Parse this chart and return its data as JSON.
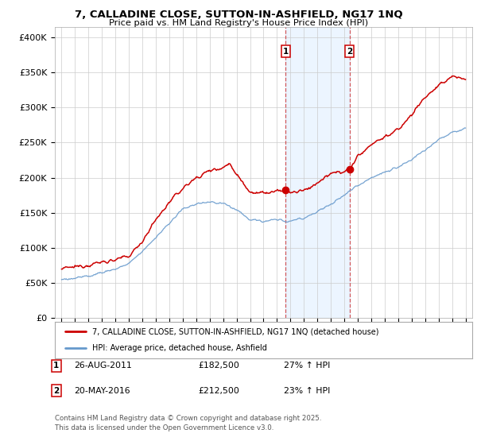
{
  "title_line1": "7, CALLADINE CLOSE, SUTTON-IN-ASHFIELD, NG17 1NQ",
  "title_line2": "Price paid vs. HM Land Registry's House Price Index (HPI)",
  "ylabel_ticks": [
    "£0",
    "£50K",
    "£100K",
    "£150K",
    "£200K",
    "£250K",
    "£300K",
    "£350K",
    "£400K"
  ],
  "ytick_values": [
    0,
    50000,
    100000,
    150000,
    200000,
    250000,
    300000,
    350000,
    400000
  ],
  "ylim": [
    0,
    415000
  ],
  "xlim_start": 1994.5,
  "xlim_end": 2025.5,
  "red_line_color": "#cc0000",
  "blue_line_color": "#6699cc",
  "vline1_x": 2011.65,
  "vline2_x": 2016.38,
  "marker1_y": 182500,
  "marker2_y": 212500,
  "legend_label_red": "7, CALLADINE CLOSE, SUTTON-IN-ASHFIELD, NG17 1NQ (detached house)",
  "legend_label_blue": "HPI: Average price, detached house, Ashfield",
  "table_row1": [
    "1",
    "26-AUG-2011",
    "£182,500",
    "27% ↑ HPI"
  ],
  "table_row2": [
    "2",
    "20-MAY-2016",
    "£212,500",
    "23% ↑ HPI"
  ],
  "footnote": "Contains HM Land Registry data © Crown copyright and database right 2025.\nThis data is licensed under the Open Government Licence v3.0.",
  "bg_color": "#ffffff",
  "grid_color": "#cccccc",
  "shaded_color": "#ddeeff",
  "red_keypoints_x": [
    1995,
    1996,
    1997,
    1998,
    1999,
    2000,
    2001,
    2002,
    2003,
    2004,
    2005,
    2006,
    2007,
    2007.5,
    2008,
    2009,
    2010,
    2011,
    2011.65,
    2012,
    2013,
    2014,
    2015,
    2016,
    2016.38,
    2017,
    2018,
    2019,
    2020,
    2021,
    2022,
    2023,
    2024,
    2025
  ],
  "red_keypoints_y": [
    70000,
    73000,
    76000,
    80000,
    83000,
    88000,
    110000,
    140000,
    165000,
    185000,
    200000,
    210000,
    215000,
    220000,
    205000,
    180000,
    178000,
    180000,
    182500,
    178000,
    182000,
    192000,
    205000,
    210000,
    212500,
    230000,
    248000,
    258000,
    268000,
    290000,
    315000,
    330000,
    345000,
    340000
  ],
  "blue_keypoints_x": [
    1995,
    1996,
    1997,
    1998,
    1999,
    2000,
    2001,
    2002,
    2003,
    2004,
    2005,
    2006,
    2007,
    2008,
    2009,
    2010,
    2011,
    2012,
    2013,
    2014,
    2015,
    2016,
    2017,
    2018,
    2019,
    2020,
    2021,
    2022,
    2023,
    2024,
    2025
  ],
  "blue_keypoints_y": [
    55000,
    57000,
    60000,
    65000,
    70000,
    78000,
    95000,
    115000,
    135000,
    155000,
    163000,
    165000,
    163000,
    155000,
    140000,
    138000,
    140000,
    138000,
    143000,
    152000,
    162000,
    175000,
    190000,
    200000,
    208000,
    215000,
    225000,
    240000,
    255000,
    265000,
    270000
  ]
}
